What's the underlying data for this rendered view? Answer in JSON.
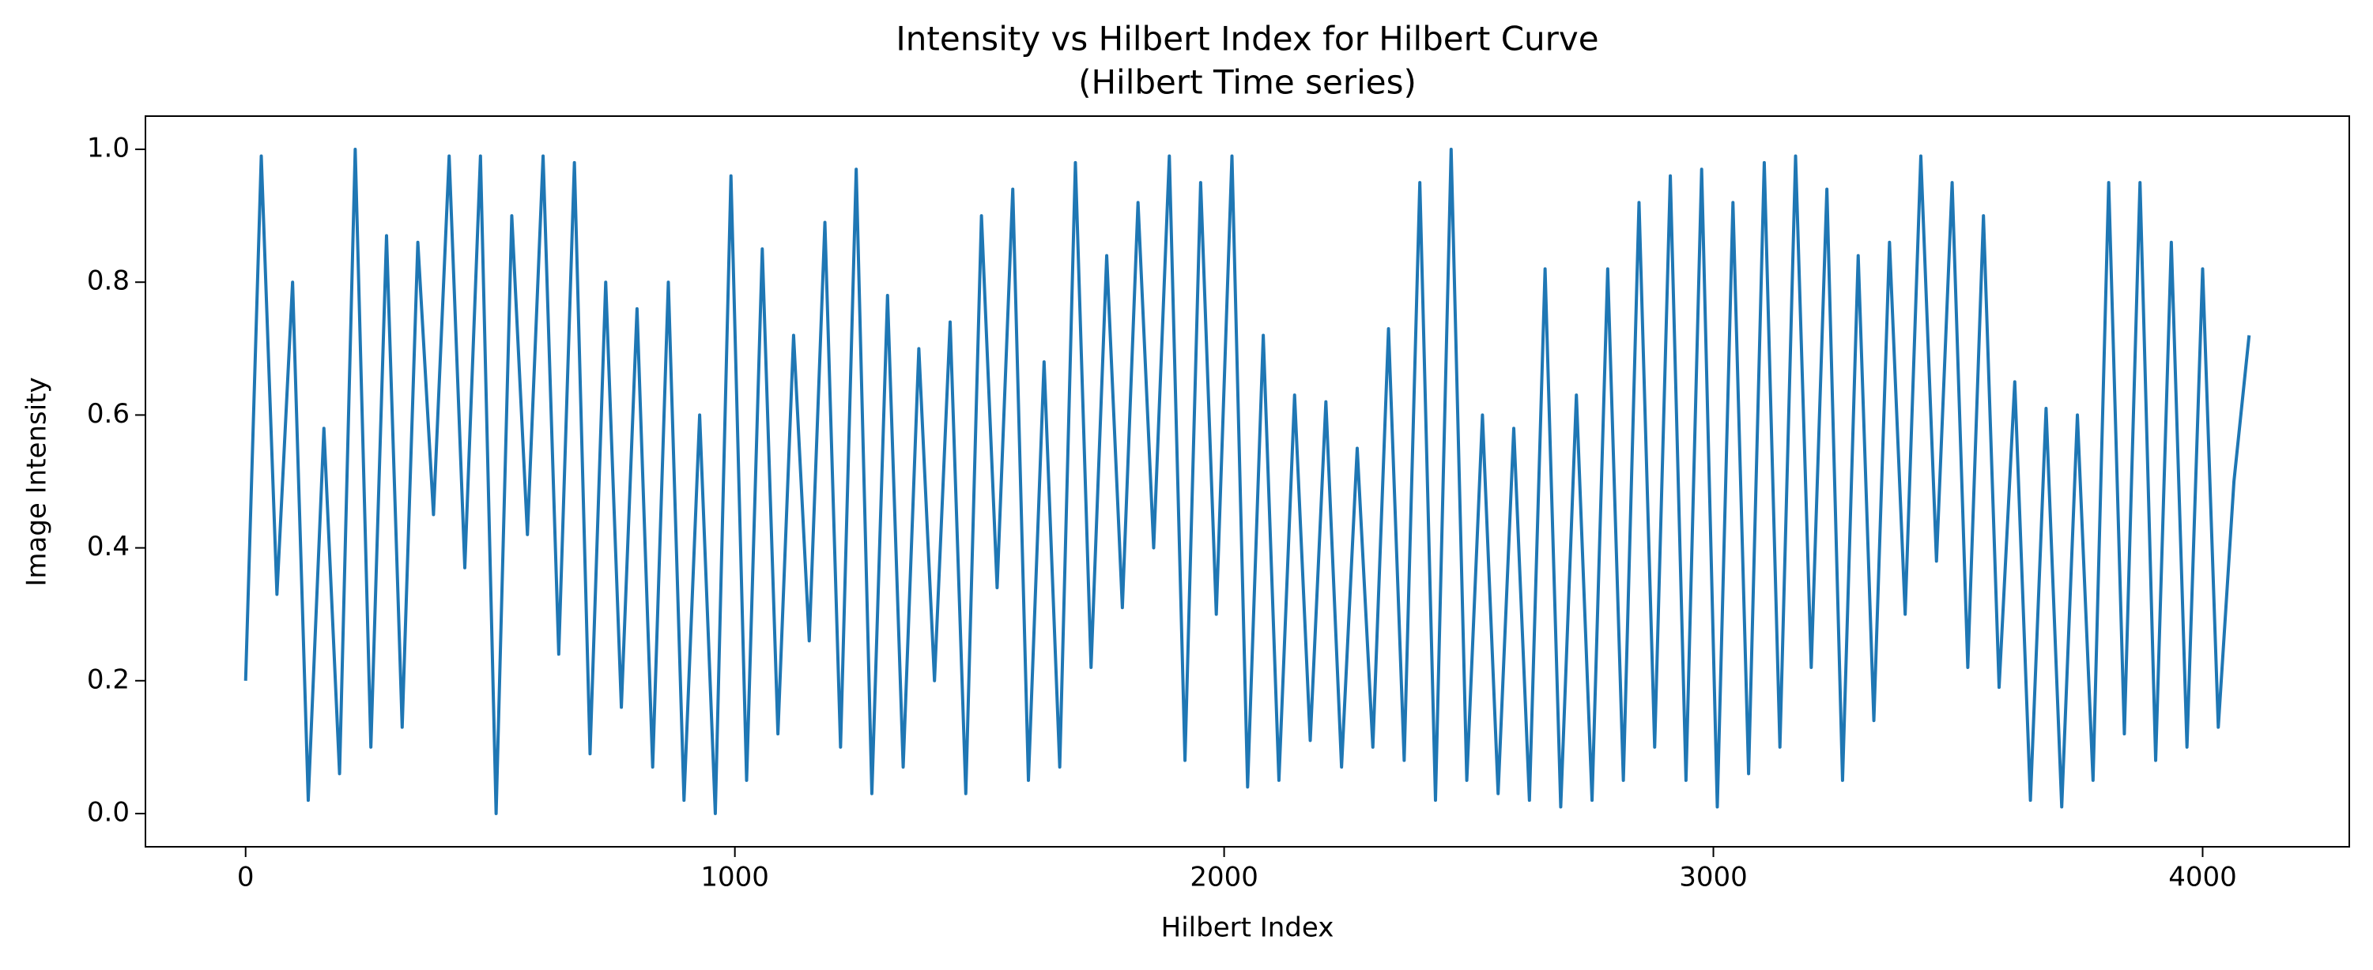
{
  "chart_data": {
    "type": "line",
    "title": "Intensity vs Hilbert Index for Hilbert Curve",
    "subtitle": "(Hilbert Time series)",
    "x_label": "Hilbert Index",
    "y_label": "Image Intensity",
    "xlim": [
      -204.75,
      4299.75
    ],
    "ylim": [
      -0.05,
      1.05
    ],
    "xticks": [
      0,
      1000,
      2000,
      3000,
      4000
    ],
    "yticks": [
      {
        "value": 0,
        "label": "0.0"
      },
      0.2,
      0.4,
      0.6,
      0.8,
      {
        "value": 1,
        "label": "1.0"
      }
    ],
    "grid": false,
    "x": [
      0,
      32,
      64,
      96,
      128,
      160,
      192,
      224,
      256,
      288,
      320,
      352,
      384,
      416,
      448,
      480,
      512,
      544,
      576,
      608,
      640,
      672,
      704,
      736,
      768,
      800,
      832,
      864,
      896,
      928,
      960,
      992,
      1024,
      1056,
      1088,
      1120,
      1152,
      1184,
      1216,
      1248,
      1280,
      1312,
      1344,
      1376,
      1408,
      1440,
      1472,
      1504,
      1536,
      1568,
      1600,
      1632,
      1664,
      1696,
      1728,
      1760,
      1792,
      1824,
      1856,
      1888,
      1920,
      1952,
      1984,
      2016,
      2048,
      2080,
      2112,
      2144,
      2176,
      2208,
      2240,
      2272,
      2304,
      2336,
      2368,
      2400,
      2432,
      2464,
      2496,
      2528,
      2560,
      2592,
      2624,
      2656,
      2688,
      2720,
      2752,
      2784,
      2816,
      2848,
      2880,
      2912,
      2944,
      2976,
      3008,
      3040,
      3072,
      3104,
      3136,
      3168,
      3200,
      3232,
      3264,
      3296,
      3328,
      3360,
      3392,
      3424,
      3456,
      3488,
      3520,
      3552,
      3584,
      3616,
      3648,
      3680,
      3712,
      3744,
      3776,
      3808,
      3840,
      3872,
      3904,
      3936,
      3968,
      4000,
      4032,
      4064,
      4095
    ],
    "series": [
      {
        "color": "#1f77b4",
        "values": [
          0.2,
          0.99,
          0.33,
          0.8,
          0.02,
          0.58,
          0.06,
          1.0,
          0.1,
          0.87,
          0.13,
          0.86,
          0.45,
          0.99,
          0.37,
          0.99,
          0.0,
          0.9,
          0.42,
          0.99,
          0.24,
          0.98,
          0.09,
          0.8,
          0.16,
          0.76,
          0.07,
          0.8,
          0.02,
          0.6,
          0.0,
          0.96,
          0.05,
          0.85,
          0.12,
          0.72,
          0.26,
          0.89,
          0.1,
          0.97,
          0.03,
          0.78,
          0.07,
          0.7,
          0.2,
          0.74,
          0.03,
          0.9,
          0.34,
          0.94,
          0.05,
          0.68,
          0.07,
          0.98,
          0.22,
          0.84,
          0.31,
          0.92,
          0.4,
          0.99,
          0.08,
          0.95,
          0.3,
          0.99,
          0.04,
          0.72,
          0.05,
          0.63,
          0.11,
          0.62,
          0.07,
          0.55,
          0.1,
          0.73,
          0.08,
          0.95,
          0.02,
          1.0,
          0.05,
          0.6,
          0.03,
          0.58,
          0.02,
          0.82,
          0.01,
          0.63,
          0.02,
          0.82,
          0.05,
          0.92,
          0.1,
          0.96,
          0.05,
          0.97,
          0.01,
          0.92,
          0.06,
          0.98,
          0.1,
          0.99,
          0.22,
          0.94,
          0.05,
          0.84,
          0.14,
          0.86,
          0.3,
          0.99,
          0.38,
          0.95,
          0.22,
          0.9,
          0.19,
          0.65,
          0.02,
          0.61,
          0.01,
          0.6,
          0.05,
          0.95,
          0.12,
          0.95,
          0.08,
          0.86,
          0.1,
          0.82,
          0.13,
          0.5,
          0.72
        ]
      }
    ]
  }
}
